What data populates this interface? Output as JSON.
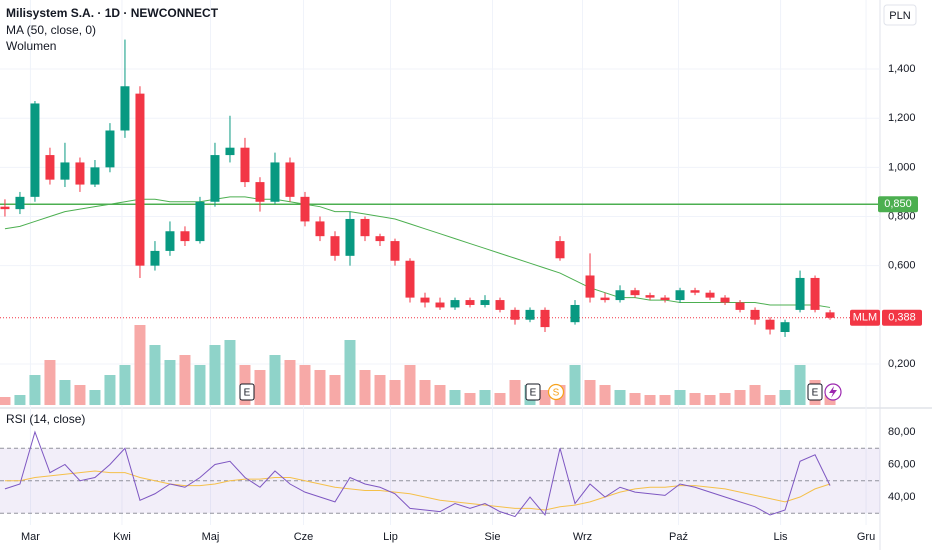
{
  "chart_data": [
    {
      "type": "candlestick",
      "title": "Milisystem S.A. · 1D · NEWCONNECT",
      "currency": "PLN",
      "xlim": [
        -0.33,
        58.33
      ],
      "xticks": [
        {
          "value": 1.7,
          "label": "Mar"
        },
        {
          "value": 7.8,
          "label": "Kwi"
        },
        {
          "value": 13.7,
          "label": "Maj"
        },
        {
          "value": 19.9,
          "label": "Cze"
        },
        {
          "value": 25.7,
          "label": "Lip"
        },
        {
          "value": 32.5,
          "label": "Sie"
        },
        {
          "value": 38.5,
          "label": "Wrz"
        },
        {
          "value": 44.9,
          "label": "Paź"
        },
        {
          "value": 51.7,
          "label": "Lis"
        },
        {
          "value": 57.4,
          "label": "Gru"
        }
      ],
      "ylim": [
        0.033,
        1.681
      ],
      "yticks": [
        {
          "value": 0.2,
          "label": "0,200"
        },
        {
          "value": 0.6,
          "label": "0,600"
        },
        {
          "value": 0.8,
          "label": "0,800"
        },
        {
          "value": 1.0,
          "label": "1,000"
        },
        {
          "value": 1.2,
          "label": "1,200"
        },
        {
          "value": 1.4,
          "label": "1,400"
        }
      ],
      "grid": true,
      "up_color": "#089981",
      "down_color": "#f23645",
      "open": [
        0.84,
        0.83,
        0.88,
        1.05,
        0.95,
        1.02,
        0.93,
        1.0,
        1.15,
        1.3,
        0.6,
        0.66,
        0.74,
        0.7,
        0.86,
        1.05,
        1.08,
        0.94,
        0.86,
        1.02,
        0.88,
        0.78,
        0.72,
        0.64,
        0.79,
        0.72,
        0.7,
        0.62,
        0.47,
        0.45,
        0.43,
        0.46,
        0.44,
        0.46,
        0.42,
        0.38,
        0.42,
        0.7,
        0.37,
        0.56,
        0.47,
        0.46,
        0.5,
        0.48,
        0.47,
        0.46,
        0.5,
        0.49,
        0.47,
        0.45,
        0.42,
        0.38,
        0.33,
        0.42,
        0.55,
        0.41
      ],
      "high": [
        0.87,
        0.9,
        1.27,
        1.08,
        1.1,
        1.04,
        1.03,
        1.18,
        1.52,
        1.33,
        0.7,
        0.78,
        0.76,
        0.88,
        1.1,
        1.21,
        1.12,
        0.96,
        1.06,
        1.04,
        0.9,
        0.8,
        0.74,
        0.82,
        0.8,
        0.73,
        0.71,
        0.63,
        0.49,
        0.47,
        0.47,
        0.47,
        0.48,
        0.47,
        0.43,
        0.43,
        0.43,
        0.72,
        0.46,
        0.65,
        0.49,
        0.52,
        0.51,
        0.49,
        0.48,
        0.51,
        0.51,
        0.5,
        0.48,
        0.46,
        0.43,
        0.39,
        0.38,
        0.58,
        0.56,
        0.42
      ],
      "low": [
        0.8,
        0.81,
        0.86,
        0.93,
        0.92,
        0.9,
        0.92,
        0.98,
        1.12,
        0.55,
        0.58,
        0.64,
        0.68,
        0.69,
        0.84,
        1.02,
        0.92,
        0.82,
        0.85,
        0.86,
        0.76,
        0.7,
        0.62,
        0.6,
        0.7,
        0.68,
        0.6,
        0.45,
        0.43,
        0.42,
        0.42,
        0.43,
        0.43,
        0.41,
        0.36,
        0.37,
        0.33,
        0.62,
        0.36,
        0.45,
        0.45,
        0.45,
        0.47,
        0.46,
        0.45,
        0.45,
        0.48,
        0.46,
        0.44,
        0.41,
        0.36,
        0.32,
        0.31,
        0.41,
        0.41,
        0.38
      ],
      "close": [
        0.83,
        0.88,
        1.26,
        0.95,
        1.02,
        0.93,
        1.0,
        1.15,
        1.33,
        0.6,
        0.66,
        0.74,
        0.7,
        0.86,
        1.05,
        1.08,
        0.94,
        0.86,
        1.02,
        0.88,
        0.78,
        0.72,
        0.64,
        0.79,
        0.72,
        0.7,
        0.62,
        0.47,
        0.45,
        0.43,
        0.46,
        0.44,
        0.46,
        0.42,
        0.38,
        0.42,
        0.35,
        0.63,
        0.44,
        0.47,
        0.46,
        0.5,
        0.48,
        0.47,
        0.46,
        0.5,
        0.49,
        0.47,
        0.45,
        0.42,
        0.38,
        0.34,
        0.37,
        0.55,
        0.42,
        0.388
      ],
      "series": [
        {
          "name": "MA (50, close, 0)",
          "color": "#4caf50",
          "values": [
            0.75,
            0.76,
            0.78,
            0.8,
            0.82,
            0.83,
            0.84,
            0.85,
            0.86,
            0.87,
            0.87,
            0.86,
            0.86,
            0.86,
            0.87,
            0.88,
            0.88,
            0.87,
            0.87,
            0.86,
            0.85,
            0.84,
            0.82,
            0.82,
            0.81,
            0.8,
            0.79,
            0.77,
            0.75,
            0.73,
            0.71,
            0.69,
            0.67,
            0.65,
            0.63,
            0.61,
            0.59,
            0.57,
            0.54,
            0.51,
            0.49,
            0.47,
            0.47,
            0.46,
            0.46,
            0.45,
            0.45,
            0.45,
            0.45,
            0.45,
            0.45,
            0.44,
            0.44,
            0.44,
            0.44,
            0.43
          ]
        }
      ],
      "volume": {
        "name": "Wolumen",
        "vlim": [
          0,
          110
        ],
        "up_color": "#8fd3c9",
        "down_color": "#f7a9a7",
        "values": [
          8,
          10,
          30,
          45,
          25,
          20,
          15,
          30,
          40,
          80,
          60,
          45,
          50,
          40,
          60,
          65,
          40,
          35,
          50,
          45,
          40,
          35,
          30,
          65,
          35,
          30,
          25,
          40,
          25,
          20,
          15,
          12,
          15,
          12,
          25,
          20,
          15,
          20,
          40,
          25,
          20,
          15,
          12,
          10,
          10,
          15,
          12,
          10,
          12,
          15,
          20,
          10,
          15,
          40,
          25,
          10
        ]
      },
      "hline": {
        "value": 0.85,
        "label": "0,850",
        "color": "#4caf50"
      },
      "last": {
        "symbol": "MLM",
        "value": 0.388,
        "label": "0,388",
        "color": "#f23645"
      },
      "events": [
        "E",
        "E",
        "S",
        "E"
      ]
    },
    {
      "type": "line",
      "title": "RSI (14, close)",
      "xlim": [
        -0.33,
        58.33
      ],
      "ylim": [
        22.8,
        93.5
      ],
      "yticks": [
        {
          "value": 40,
          "label": "40,00"
        },
        {
          "value": 60,
          "label": "60,00"
        },
        {
          "value": 80,
          "label": "80,00"
        }
      ],
      "levels": [
        30,
        50,
        70
      ],
      "band_color": "#7e57c2",
      "series": [
        {
          "color": "#7e57c2",
          "values": [
            45,
            48,
            80,
            55,
            60,
            50,
            52,
            60,
            70,
            38,
            42,
            48,
            46,
            52,
            60,
            62,
            52,
            46,
            56,
            48,
            43,
            40,
            37,
            52,
            48,
            46,
            42,
            33,
            32,
            31,
            36,
            33,
            36,
            31,
            28,
            40,
            29,
            70,
            36,
            48,
            40,
            46,
            43,
            42,
            41,
            48,
            46,
            43,
            40,
            37,
            34,
            29,
            32,
            62,
            66,
            47
          ]
        },
        {
          "color": "#f5c04a",
          "values": [
            50,
            50,
            52,
            53,
            54,
            55,
            56,
            55,
            55,
            52,
            50,
            48,
            47,
            47,
            48,
            50,
            51,
            51,
            52,
            52,
            50,
            48,
            46,
            45,
            44,
            44,
            43,
            42,
            40,
            38,
            37,
            36,
            35,
            34,
            33,
            33,
            32,
            34,
            35,
            37,
            40,
            43,
            45,
            46,
            46,
            47,
            47,
            46,
            45,
            43,
            41,
            39,
            37,
            40,
            45,
            48
          ]
        }
      ]
    }
  ]
}
